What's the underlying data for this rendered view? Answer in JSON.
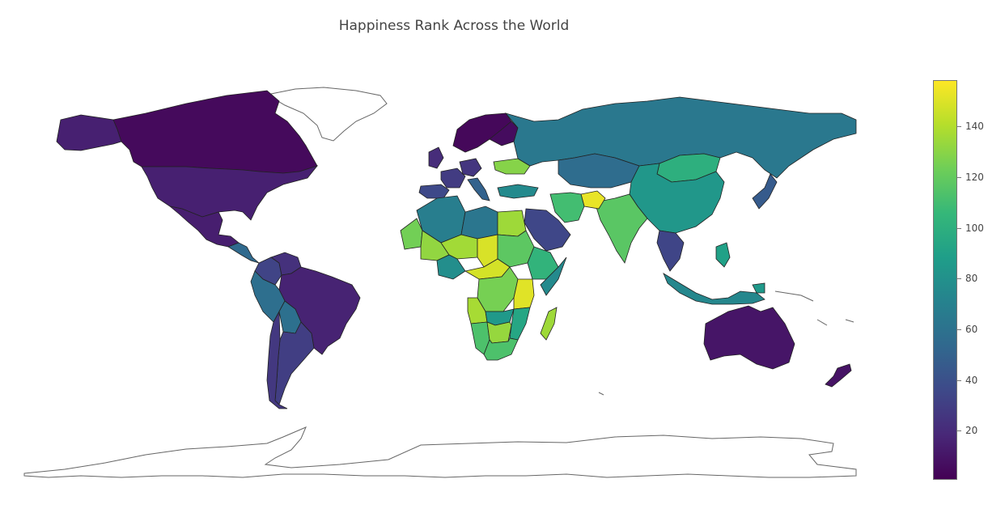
{
  "chart_data": {
    "type": "choropleth",
    "title": "Happiness Rank Across the World",
    "colorscale": "viridis",
    "colorscale_stops": [
      "#440154",
      "#482878",
      "#3e4989",
      "#31688e",
      "#26828e",
      "#1f9e89",
      "#35b779",
      "#6ece58",
      "#b5de2b",
      "#fde725"
    ],
    "zmin": 1,
    "zmax": 158,
    "colorbar_ticks": [
      20,
      40,
      60,
      80,
      100,
      120,
      140
    ],
    "colorbar_tick_labels": [
      "20",
      "40",
      "60",
      "80",
      "100",
      "120",
      "140"
    ],
    "regions": [
      {
        "name": "Canada",
        "rank": 5
      },
      {
        "name": "United States",
        "rank": 15
      },
      {
        "name": "Mexico",
        "rank": 14
      },
      {
        "name": "Guatemala",
        "rank": 55
      },
      {
        "name": "Colombia",
        "rank": 33
      },
      {
        "name": "Venezuela",
        "rank": 23
      },
      {
        "name": "Brazil",
        "rank": 16
      },
      {
        "name": "Peru",
        "rank": 58
      },
      {
        "name": "Bolivia",
        "rank": 59
      },
      {
        "name": "Argentina",
        "rank": 30
      },
      {
        "name": "Chile",
        "rank": 27
      },
      {
        "name": "Norway",
        "rank": 4
      },
      {
        "name": "Sweden",
        "rank": 8
      },
      {
        "name": "Finland",
        "rank": 6
      },
      {
        "name": "United Kingdom",
        "rank": 21
      },
      {
        "name": "France",
        "rank": 29
      },
      {
        "name": "Germany",
        "rank": 26
      },
      {
        "name": "Spain",
        "rank": 36
      },
      {
        "name": "Italy",
        "rank": 50
      },
      {
        "name": "Ukraine",
        "rank": 129
      },
      {
        "name": "Russia",
        "rank": 64
      },
      {
        "name": "Kazakhstan",
        "rank": 57
      },
      {
        "name": "Mongolia",
        "rank": 100
      },
      {
        "name": "China",
        "rank": 84
      },
      {
        "name": "India",
        "rank": 117
      },
      {
        "name": "Afghanistan",
        "rank": 153
      },
      {
        "name": "Iran",
        "rank": 110
      },
      {
        "name": "Saudi Arabia",
        "rank": 35
      },
      {
        "name": "Turkey",
        "rank": 76
      },
      {
        "name": "Japan",
        "rank": 46
      },
      {
        "name": "Algeria",
        "rank": 68
      },
      {
        "name": "Libya",
        "rank": 63
      },
      {
        "name": "Egypt",
        "rank": 135
      },
      {
        "name": "Sudan",
        "rank": 118
      },
      {
        "name": "Chad",
        "rank": 149
      },
      {
        "name": "Niger",
        "rank": 136
      },
      {
        "name": "Mali",
        "rank": 132
      },
      {
        "name": "Mauritania",
        "rank": 124
      },
      {
        "name": "Nigeria",
        "rank": 78
      },
      {
        "name": "Central African Republic",
        "rank": 148
      },
      {
        "name": "Ethiopia",
        "rank": 103
      },
      {
        "name": "Somalia",
        "rank": 76
      },
      {
        "name": "DR Congo",
        "rank": 125
      },
      {
        "name": "Tanzania",
        "rank": 151
      },
      {
        "name": "Angola",
        "rank": 137
      },
      {
        "name": "Zambia",
        "rank": 85
      },
      {
        "name": "Zimbabwe",
        "rank": 131
      },
      {
        "name": "Mozambique",
        "rank": 94
      },
      {
        "name": "Botswana",
        "rank": 133
      },
      {
        "name": "Namibia",
        "rank": 113
      },
      {
        "name": "South Africa",
        "rank": 113
      },
      {
        "name": "Madagascar",
        "rank": 135
      },
      {
        "name": "Thailand",
        "rank": 34
      },
      {
        "name": "Indonesia",
        "rank": 74
      },
      {
        "name": "Philippines",
        "rank": 90
      },
      {
        "name": "Papua New Guinea",
        "rank": 85
      },
      {
        "name": "Australia",
        "rank": 10
      },
      {
        "name": "New Zealand",
        "rank": 9
      }
    ]
  }
}
